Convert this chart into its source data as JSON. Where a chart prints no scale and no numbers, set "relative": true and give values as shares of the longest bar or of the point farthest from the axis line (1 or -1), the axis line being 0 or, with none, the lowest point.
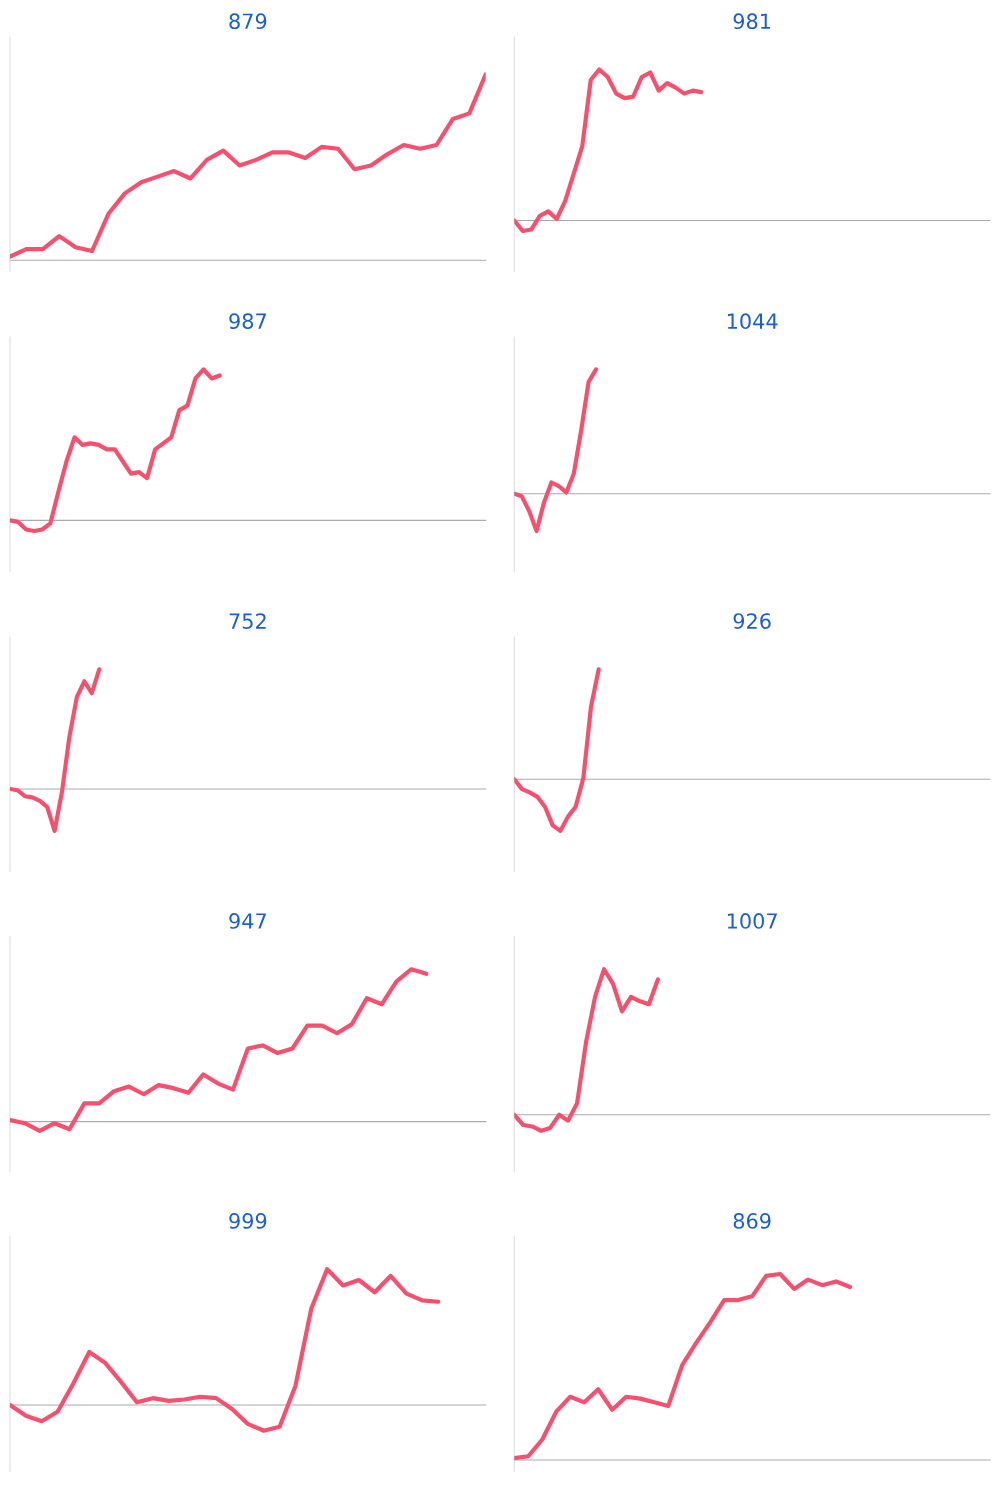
{
  "chart_data": [
    {
      "type": "line",
      "title": "879",
      "relative": true,
      "categories": [
        null,
        null,
        null,
        null,
        null,
        null,
        null,
        null,
        null,
        null,
        null,
        null,
        null,
        null,
        null,
        null,
        null,
        null,
        null,
        null,
        null,
        null,
        null,
        null,
        null,
        null,
        null,
        null,
        null,
        null
      ],
      "series": [
        {
          "color": "#f7506e",
          "values": [
            0.02,
            0.06,
            0.06,
            0.13,
            0.07,
            0.05,
            0.25,
            0.36,
            0.42,
            0.45,
            0.48,
            0.44,
            0.54,
            0.59,
            0.51,
            0.54,
            0.58,
            0.58,
            0.55,
            0.61,
            0.6,
            0.49,
            0.51,
            0.57,
            0.62,
            0.6,
            0.62,
            0.76,
            0.79,
            1
          ]
        }
      ]
    },
    {
      "type": "line",
      "title": "981",
      "relative": true,
      "categories": [
        null,
        null,
        null,
        null,
        null,
        null,
        null,
        null,
        null,
        null,
        null,
        null,
        null,
        null,
        null,
        null,
        null,
        null,
        null,
        null,
        null,
        null,
        null,
        null,
        null,
        null,
        null,
        null,
        null,
        null,
        null,
        null,
        null,
        null,
        null,
        null,
        null,
        null,
        null,
        null,
        null,
        null,
        null,
        null,
        null,
        null,
        null,
        null,
        null,
        null,
        null,
        null,
        null,
        null,
        null,
        null,
        null
      ],
      "series": [
        {
          "color": "#f7506e",
          "values": [
            0,
            -0.07,
            -0.06,
            0.03,
            0.06,
            0.01,
            0.13,
            0.31,
            0.49,
            0.93,
            1,
            0.95,
            0.84,
            0.81,
            0.82,
            0.95,
            0.98,
            0.86,
            0.91,
            0.88,
            0.84,
            0.86,
            0.85,
            null,
            null,
            null,
            null,
            null,
            null,
            null,
            null,
            null,
            null,
            null,
            null,
            null,
            null,
            null,
            null,
            null,
            null,
            null,
            null,
            null,
            null,
            null,
            null,
            null,
            null,
            null,
            null,
            null,
            null,
            null,
            null,
            null,
            null
          ]
        }
      ]
    },
    {
      "type": "line",
      "title": "987",
      "relative": true,
      "categories": [
        null,
        null,
        null,
        null,
        null,
        null,
        null,
        null,
        null,
        null,
        null,
        null,
        null,
        null,
        null,
        null,
        null,
        null,
        null,
        null,
        null,
        null,
        null,
        null,
        null,
        null,
        null,
        null,
        null,
        null,
        null,
        null,
        null,
        null,
        null,
        null,
        null,
        null,
        null,
        null,
        null,
        null,
        null,
        null,
        null,
        null,
        null,
        null,
        null,
        null,
        null,
        null,
        null,
        null,
        null,
        null,
        null,
        null,
        null,
        null
      ],
      "series": [
        {
          "color": "#f7506e",
          "values": [
            0,
            -0.01,
            -0.06,
            -0.07,
            -0.06,
            -0.02,
            0.19,
            0.39,
            0.55,
            0.5,
            0.51,
            0.5,
            0.47,
            0.47,
            0.39,
            0.31,
            0.32,
            0.28,
            0.47,
            0.51,
            0.55,
            0.73,
            0.76,
            0.94,
            1,
            0.94,
            0.96,
            null,
            null,
            null,
            null,
            null,
            null,
            null,
            null,
            null,
            null,
            null,
            null,
            null,
            null,
            null,
            null,
            null,
            null,
            null,
            null,
            null,
            null,
            null,
            null,
            null,
            null,
            null,
            null,
            null,
            null,
            null,
            null,
            null
          ]
        }
      ]
    },
    {
      "type": "line",
      "title": "1044",
      "relative": true,
      "categories": [
        null,
        null,
        null,
        null,
        null,
        null,
        null,
        null,
        null,
        null,
        null,
        null,
        null,
        null,
        null,
        null,
        null,
        null,
        null,
        null,
        null,
        null,
        null,
        null,
        null,
        null,
        null,
        null,
        null,
        null,
        null,
        null,
        null,
        null,
        null,
        null,
        null,
        null,
        null,
        null,
        null,
        null,
        null,
        null,
        null,
        null,
        null,
        null,
        null,
        null,
        null,
        null,
        null,
        null,
        null,
        null,
        null,
        null,
        null,
        null,
        null,
        null,
        null,
        null,
        null
      ],
      "series": [
        {
          "color": "#f7506e",
          "values": [
            0,
            -0.02,
            -0.14,
            -0.3,
            -0.07,
            0.09,
            0.06,
            0.01,
            0.16,
            0.51,
            0.9,
            1,
            null,
            null,
            null,
            null,
            null,
            null,
            null,
            null,
            null,
            null,
            null,
            null,
            null,
            null,
            null,
            null,
            null,
            null,
            null,
            null,
            null,
            null,
            null,
            null,
            null,
            null,
            null,
            null,
            null,
            null,
            null,
            null,
            null,
            null,
            null,
            null,
            null,
            null,
            null,
            null,
            null,
            null,
            null,
            null,
            null,
            null,
            null,
            null,
            null,
            null,
            null,
            null,
            null
          ]
        }
      ]
    },
    {
      "type": "line",
      "title": "752",
      "relative": true,
      "categories": [
        null,
        null,
        null,
        null,
        null,
        null,
        null,
        null,
        null,
        null,
        null,
        null,
        null,
        null,
        null,
        null,
        null,
        null,
        null,
        null,
        null,
        null,
        null,
        null,
        null,
        null,
        null,
        null,
        null,
        null,
        null,
        null,
        null,
        null,
        null,
        null,
        null,
        null,
        null,
        null,
        null,
        null,
        null,
        null,
        null,
        null,
        null,
        null,
        null,
        null,
        null,
        null,
        null,
        null,
        null,
        null,
        null,
        null,
        null,
        null,
        null,
        null,
        null,
        null,
        null
      ],
      "series": [
        {
          "color": "#f7506e",
          "values": [
            0,
            -0.01,
            -0.06,
            -0.07,
            -0.1,
            -0.15,
            -0.35,
            -0.02,
            0.44,
            0.77,
            0.9,
            0.8,
            1,
            null,
            null,
            null,
            null,
            null,
            null,
            null,
            null,
            null,
            null,
            null,
            null,
            null,
            null,
            null,
            null,
            null,
            null,
            null,
            null,
            null,
            null,
            null,
            null,
            null,
            null,
            null,
            null,
            null,
            null,
            null,
            null,
            null,
            null,
            null,
            null,
            null,
            null,
            null,
            null,
            null,
            null,
            null,
            null,
            null,
            null,
            null,
            null,
            null,
            null,
            null,
            null
          ]
        }
      ]
    },
    {
      "type": "line",
      "title": "926",
      "relative": true,
      "categories": [
        null,
        null,
        null,
        null,
        null,
        null,
        null,
        null,
        null,
        null,
        null,
        null,
        null,
        null,
        null,
        null,
        null,
        null,
        null,
        null,
        null,
        null,
        null,
        null,
        null,
        null,
        null,
        null,
        null,
        null,
        null,
        null,
        null,
        null,
        null,
        null,
        null,
        null,
        null,
        null,
        null,
        null,
        null,
        null,
        null,
        null,
        null,
        null,
        null,
        null,
        null,
        null,
        null,
        null,
        null,
        null,
        null,
        null,
        null,
        null,
        null,
        null,
        null
      ],
      "series": [
        {
          "color": "#f7506e",
          "values": [
            0,
            -0.09,
            -0.12,
            -0.16,
            -0.25,
            -0.42,
            -0.47,
            -0.34,
            -0.25,
            0.01,
            0.66,
            1,
            null,
            null,
            null,
            null,
            null,
            null,
            null,
            null,
            null,
            null,
            null,
            null,
            null,
            null,
            null,
            null,
            null,
            null,
            null,
            null,
            null,
            null,
            null,
            null,
            null,
            null,
            null,
            null,
            null,
            null,
            null,
            null,
            null,
            null,
            null,
            null,
            null,
            null,
            null,
            null,
            null,
            null,
            null,
            null,
            null,
            null,
            null,
            null,
            null,
            null,
            null
          ]
        }
      ]
    },
    {
      "type": "line",
      "title": "947",
      "relative": true,
      "categories": [
        null,
        null,
        null,
        null,
        null,
        null,
        null,
        null,
        null,
        null,
        null,
        null,
        null,
        null,
        null,
        null,
        null,
        null,
        null,
        null,
        null,
        null,
        null,
        null,
        null,
        null,
        null,
        null,
        null,
        null,
        null,
        null,
        null
      ],
      "series": [
        {
          "color": "#f7506e",
          "values": [
            0.01,
            -0.01,
            -0.06,
            -0.01,
            -0.05,
            0.12,
            0.12,
            0.2,
            0.23,
            0.18,
            0.24,
            0.22,
            0.19,
            0.31,
            0.25,
            0.21,
            0.48,
            0.5,
            0.45,
            0.48,
            0.63,
            0.63,
            0.58,
            0.64,
            0.81,
            0.77,
            0.92,
            1,
            0.97,
            null,
            null,
            null,
            null
          ]
        }
      ]
    },
    {
      "type": "line",
      "title": "1007",
      "relative": true,
      "categories": [
        null,
        null,
        null,
        null,
        null,
        null,
        null,
        null,
        null,
        null,
        null,
        null,
        null,
        null,
        null,
        null,
        null,
        null,
        null,
        null,
        null,
        null,
        null,
        null,
        null,
        null,
        null,
        null,
        null,
        null,
        null,
        null,
        null,
        null,
        null,
        null,
        null,
        null,
        null,
        null,
        null,
        null,
        null,
        null,
        null,
        null,
        null,
        null,
        null,
        null,
        null,
        null,
        null,
        null
      ],
      "series": [
        {
          "color": "#f7506e",
          "values": [
            0,
            -0.07,
            -0.08,
            -0.11,
            -0.09,
            0,
            -0.04,
            0.08,
            0.5,
            0.81,
            1,
            0.9,
            0.71,
            0.81,
            0.78,
            0.76,
            0.93,
            null,
            null,
            null,
            null,
            null,
            null,
            null,
            null,
            null,
            null,
            null,
            null,
            null,
            null,
            null,
            null,
            null,
            null,
            null,
            null,
            null,
            null,
            null,
            null,
            null,
            null,
            null,
            null,
            null,
            null,
            null,
            null,
            null,
            null,
            null,
            null,
            null
          ]
        }
      ]
    },
    {
      "type": "line",
      "title": "999",
      "relative": true,
      "categories": [
        null,
        null,
        null,
        null,
        null,
        null,
        null,
        null,
        null,
        null,
        null,
        null,
        null,
        null,
        null,
        null,
        null,
        null,
        null,
        null,
        null,
        null,
        null,
        null,
        null,
        null,
        null,
        null,
        null,
        null,
        null
      ],
      "series": [
        {
          "color": "#f7506e",
          "values": [
            0,
            -0.08,
            -0.12,
            -0.05,
            0.16,
            0.39,
            0.31,
            0.17,
            0.02,
            0.05,
            0.03,
            0.04,
            0.06,
            0.05,
            -0.03,
            -0.14,
            -0.19,
            -0.16,
            0.14,
            0.71,
            1,
            0.88,
            0.92,
            0.83,
            0.95,
            0.82,
            0.77,
            0.76,
            null,
            null,
            null
          ]
        }
      ]
    },
    {
      "type": "line",
      "title": "869",
      "relative": true,
      "categories": [
        null,
        null,
        null,
        null,
        null,
        null,
        null,
        null,
        null,
        null,
        null,
        null,
        null,
        null,
        null,
        null,
        null,
        null,
        null,
        null,
        null,
        null,
        null,
        null,
        null,
        null,
        null,
        null,
        null,
        null,
        null,
        null,
        null,
        null,
        null
      ],
      "series": [
        {
          "color": "#f7506e",
          "values": [
            0.01,
            0.02,
            0.11,
            0.26,
            0.34,
            0.31,
            0.38,
            0.27,
            0.34,
            0.33,
            0.31,
            0.29,
            0.51,
            0.63,
            0.74,
            0.86,
            0.86,
            0.88,
            0.99,
            1,
            0.92,
            0.97,
            0.94,
            0.96,
            0.93,
            null,
            null,
            null,
            null,
            null,
            null,
            null,
            null,
            null,
            null
          ]
        }
      ]
    }
  ]
}
